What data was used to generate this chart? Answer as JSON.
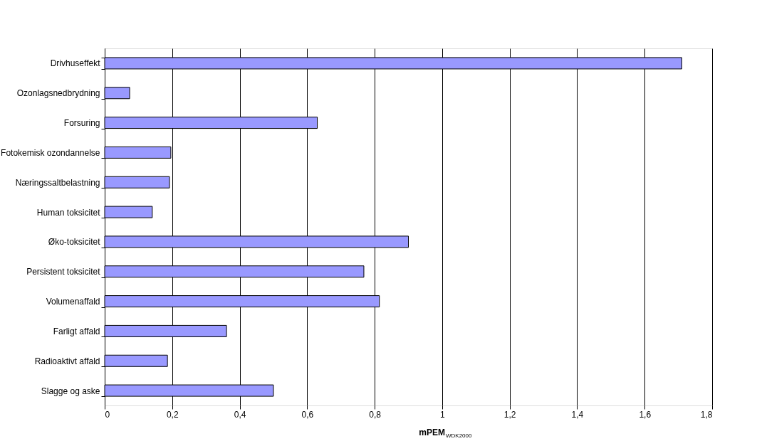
{
  "chart_data": {
    "type": "bar",
    "orientation": "horizontal",
    "xlabel": "mPEM$_{WDK2000}$",
    "categories": [
      "Drivhuseffekt",
      "Ozonlagsnedbrydning",
      "Forsuring",
      "Fotokemisk ozondannelse",
      "Næringssaltbelastning",
      "Human toksicitet",
      "Øko-toksicitet",
      "Persistent toksicitet",
      "Volumenaffald",
      "Farligt affald",
      "Radioaktivt affald",
      "Slagge og aske"
    ],
    "values": [
      1.71,
      0.074,
      0.63,
      0.196,
      0.192,
      0.141,
      0.9,
      0.768,
      0.814,
      0.361,
      0.186,
      0.5
    ],
    "color": "#9999ff",
    "xlim": [
      0,
      1.8
    ],
    "xticks": [
      0,
      {
        "value": 0.2,
        "label": "0,2"
      },
      {
        "value": 0.4,
        "label": "0,4"
      },
      {
        "value": 0.6,
        "label": "0,6"
      },
      {
        "value": 0.8,
        "label": "0,8"
      },
      1,
      {
        "value": 1.2,
        "label": "1,2"
      },
      {
        "value": 1.4,
        "label": "1,4"
      },
      {
        "value": 1.6,
        "label": "1,6"
      },
      {
        "value": 1.8,
        "label": "1,8"
      }
    ],
    "grid": "x"
  }
}
